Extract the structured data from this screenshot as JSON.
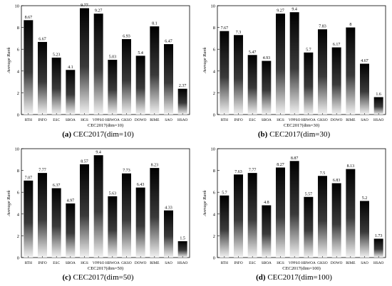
{
  "figure": {
    "captions": [
      {
        "tag": "(a)",
        "text": "CEC2017(dim=10)"
      },
      {
        "tag": "(b)",
        "text": "CEC2017(dim=30)"
      },
      {
        "tag": "(c)",
        "text": "CEC2017(dim=50)"
      },
      {
        "tag": "(d)",
        "text": "CEC2017(dim=100)"
      }
    ]
  },
  "chart_data": [
    {
      "type": "bar",
      "xlabel": "CEC2017(dim=10)",
      "ylabel": "Average Rank",
      "ylim": [
        0,
        10
      ],
      "yticks": [
        0,
        2,
        4,
        6,
        8,
        10
      ],
      "categories": [
        "RTH",
        "INFO",
        "ESC",
        "SBOA",
        "HGS",
        "VPPSO",
        "HBWOA",
        "GKSO",
        "DOWO",
        "RIME",
        "SAO",
        "HSAO"
      ],
      "values": [
        8.67,
        6.67,
        5.23,
        4.1,
        9.77,
        9.27,
        5.03,
        6.93,
        5.4,
        8.1,
        6.47,
        2.37
      ],
      "value_labels": [
        "8.67",
        "6.67",
        "5.23",
        "4.1",
        "9.77",
        "9.27",
        "5.03",
        "6.93",
        "5.4",
        "8.1",
        "6.47",
        "2.37"
      ]
    },
    {
      "type": "bar",
      "xlabel": "CEC2017(dim=30)",
      "ylabel": "Average Rank",
      "ylim": [
        0,
        10
      ],
      "yticks": [
        0,
        2,
        4,
        6,
        8,
        10
      ],
      "categories": [
        "RTH",
        "INFO",
        "ESC",
        "SBOA",
        "HGS",
        "VPPSO",
        "HBWOA",
        "GKSO",
        "DOWO",
        "RIME",
        "SAO",
        "HSAO"
      ],
      "values": [
        7.67,
        7.3,
        5.47,
        4.93,
        9.27,
        9.4,
        5.7,
        7.83,
        6.17,
        8.0,
        4.67,
        1.6
      ],
      "value_labels": [
        "7.67",
        "7.3",
        "5.47",
        "4.93",
        "9.27",
        "9.4",
        "5.7",
        "7.83",
        "6.17",
        "8",
        "4.67",
        "1.6"
      ]
    },
    {
      "type": "bar",
      "xlabel": "CEC2017(dim=50)",
      "ylabel": "Average Rank",
      "ylim": [
        0,
        10
      ],
      "yticks": [
        0,
        2,
        4,
        6,
        8,
        10
      ],
      "categories": [
        "RTH",
        "INFO",
        "ESC",
        "SBOA",
        "HGS",
        "VPPSO",
        "HBWOA",
        "GKSO",
        "DOWO",
        "RIME",
        "SAO",
        "HSAO"
      ],
      "values": [
        7.07,
        7.77,
        6.37,
        4.97,
        8.57,
        9.4,
        5.63,
        7.73,
        6.43,
        8.23,
        4.33,
        1.5
      ],
      "value_labels": [
        "7.07",
        "7.77",
        "6.37",
        "4.97",
        "8.57",
        "9.4",
        "5.63",
        "7.73",
        "6.43",
        "8.23",
        "4.33",
        "1.5"
      ]
    },
    {
      "type": "bar",
      "xlabel": "CEC2017(dim=100)",
      "ylabel": "Average Rank",
      "ylim": [
        0,
        10
      ],
      "yticks": [
        0,
        2,
        4,
        6,
        8,
        10
      ],
      "categories": [
        "RTH",
        "INFO",
        "ESC",
        "SBOA",
        "HGS",
        "VPPSO",
        "HBWOA",
        "GKSO",
        "DOWO",
        "RIME",
        "SAO",
        "HSAO"
      ],
      "values": [
        5.7,
        7.63,
        7.77,
        4.8,
        8.27,
        8.87,
        5.57,
        7.5,
        6.83,
        8.13,
        5.2,
        1.73
      ],
      "value_labels": [
        "5.7",
        "7.63",
        "7.77",
        "4.8",
        "8.27",
        "8.87",
        "5.57",
        "7.5",
        "6.83",
        "8.13",
        "5.2",
        "1.73"
      ]
    }
  ]
}
